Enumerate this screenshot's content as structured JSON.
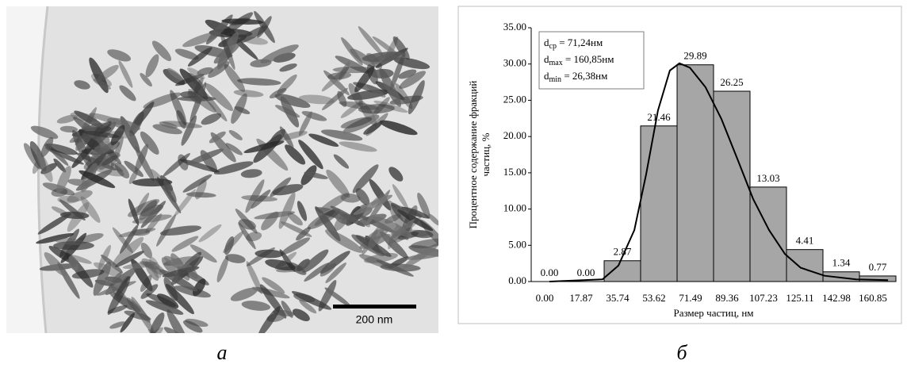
{
  "image": {
    "scale_bar": "200 nm",
    "caption": "а"
  },
  "chart_data": {
    "type": "bar",
    "caption": "б",
    "ylabel": [
      "Процентное содержание фракций",
      "частиц, %"
    ],
    "xlabel": "Размер частиц, нм",
    "categories": [
      "0.00",
      "17.87",
      "35.74",
      "53.62",
      "71.49",
      "89.36",
      "107.23",
      "125.11",
      "142.98",
      "160.85"
    ],
    "values": [
      0,
      0,
      2.87,
      21.46,
      29.89,
      26.25,
      13.03,
      4.41,
      1.34,
      0.77
    ],
    "value_labels": [
      "0.00",
      "0.00",
      "2.87",
      "21.46",
      "29.89",
      "26.25",
      "13.03",
      "4.41",
      "1.34",
      "0.77"
    ],
    "color": "#a6a6a6",
    "ylim": [
      0,
      35
    ],
    "yticks": [
      {
        "value": 0,
        "label": "0.00"
      },
      {
        "value": 5,
        "label": "5.00"
      },
      {
        "value": 10,
        "label": "10.00"
      },
      {
        "value": 15,
        "label": "15.00"
      },
      {
        "value": 20,
        "label": "20.00"
      },
      {
        "value": 25,
        "label": "25.00"
      },
      {
        "value": 30,
        "label": "30.00"
      },
      {
        "value": 35,
        "label": "35.00"
      }
    ],
    "fit": {
      "color": "#000000",
      "x": [
        0,
        26.0,
        33.8,
        41.6,
        47.4,
        53.2,
        59.0,
        63.7,
        68.8,
        76.5,
        84.3,
        92.1,
        99.8,
        107.6,
        115.4,
        123.1,
        134.8,
        150.3,
        165.9
      ],
      "values": [
        0,
        0.3,
        2.2,
        7.1,
        14.8,
        23.6,
        29.1,
        30.1,
        29.5,
        26.8,
        22.4,
        16.9,
        11.4,
        7.1,
        3.8,
        1.9,
        0.8,
        0.3,
        0.2
      ]
    },
    "annotation": [
      {
        "symbol": "d",
        "sub": "ср",
        "text": " = 71,24нм"
      },
      {
        "symbol": "d",
        "sub": "max",
        "text": " = 160,85нм"
      },
      {
        "symbol": "d",
        "sub": "min",
        "text": " = 26,38нм"
      }
    ]
  }
}
